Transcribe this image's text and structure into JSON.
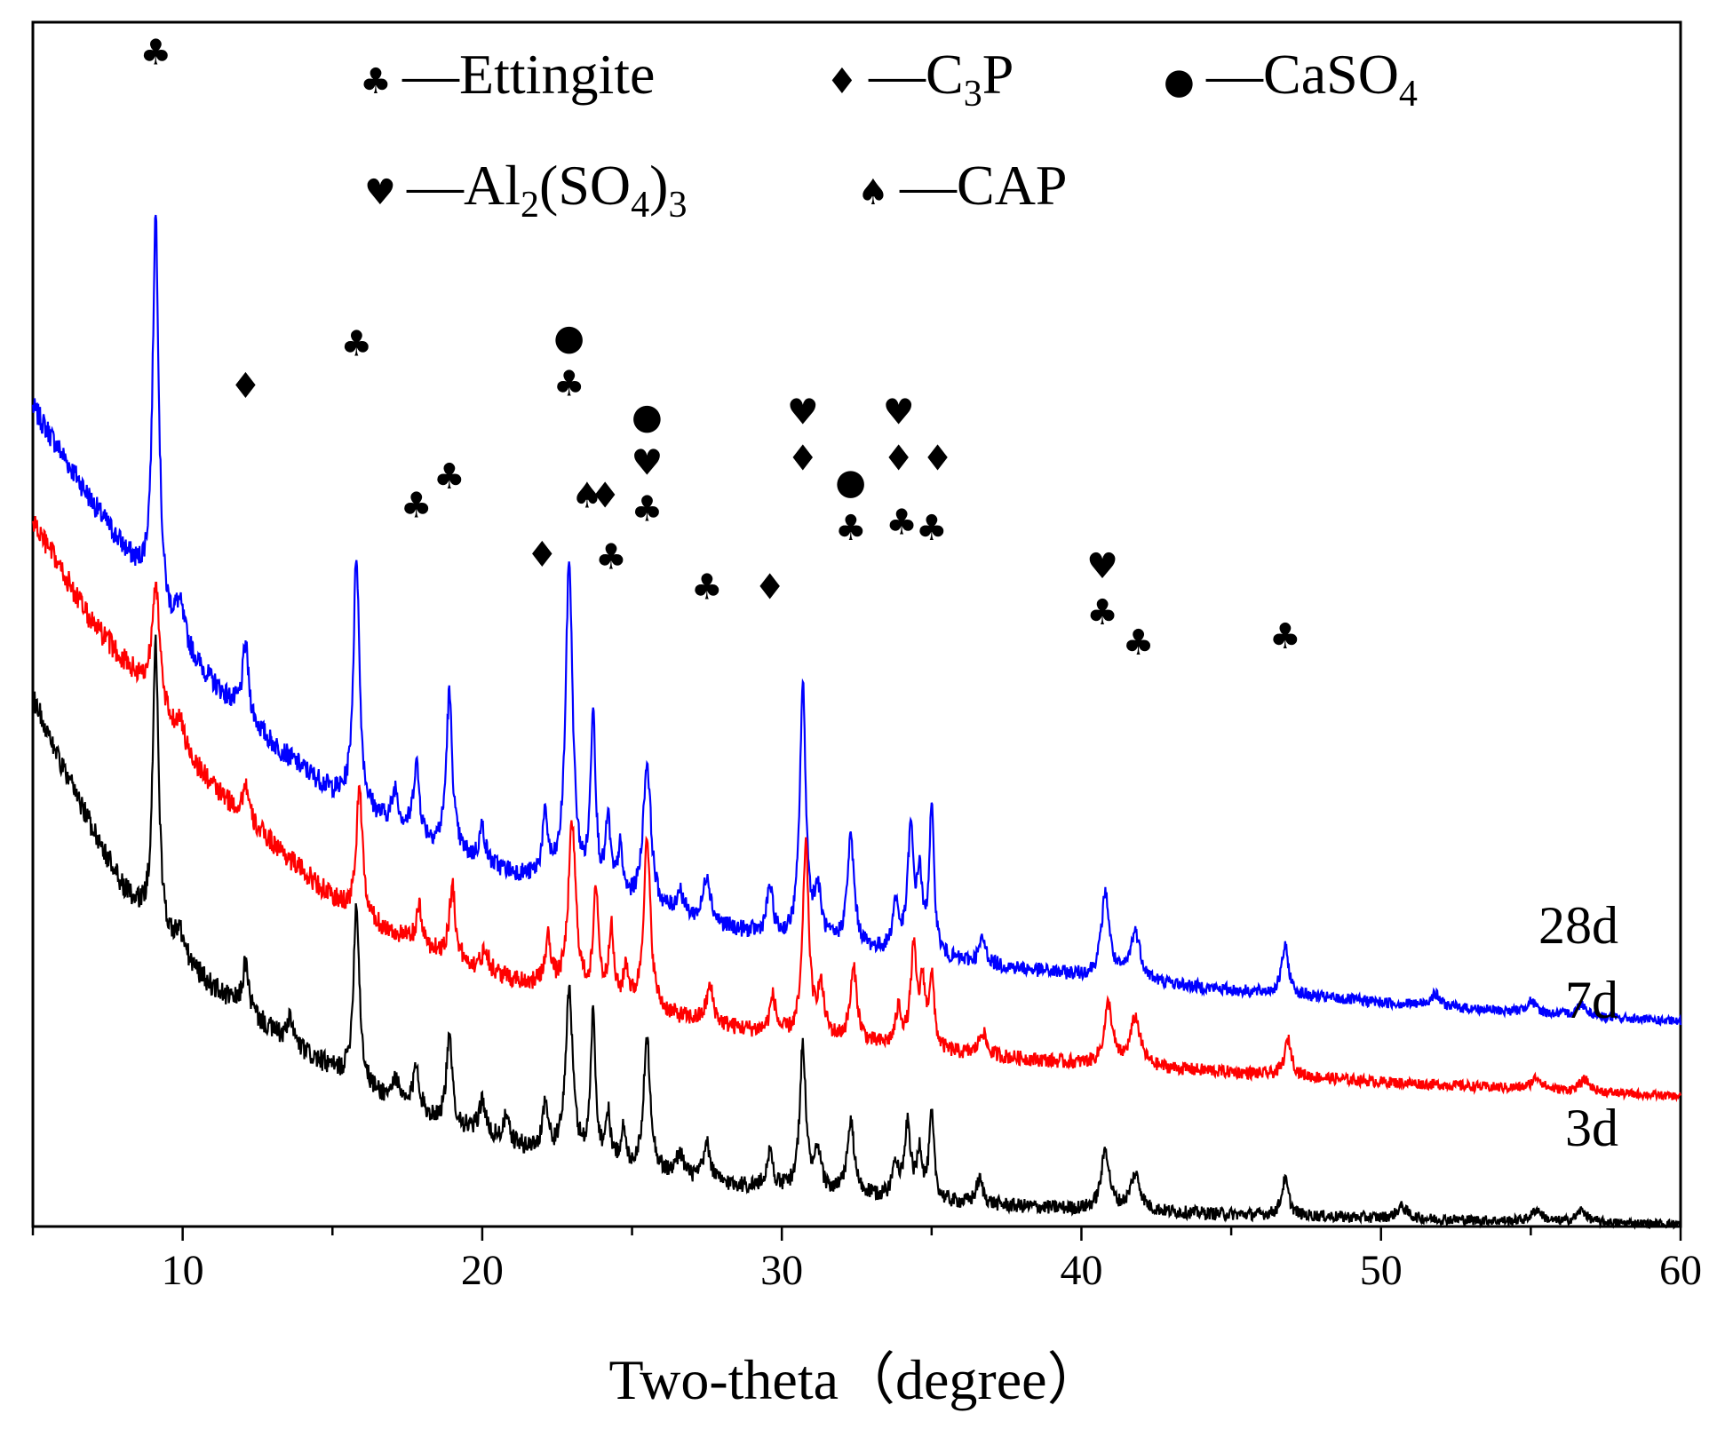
{
  "chart_data": {
    "type": "line",
    "title": "",
    "xlabel": "Two-theta（degree）",
    "ylabel": "",
    "xlim": [
      5,
      60
    ],
    "ylim": [
      0,
      1
    ],
    "x_ticks": [
      10,
      20,
      30,
      40,
      50,
      60
    ],
    "y_ticks": [],
    "colors": {
      "28d": "#0000ff",
      "7d": "#ff0000",
      "3d": "#000000"
    },
    "legend": [
      {
        "name": "Ettingite",
        "symbol": "♣",
        "symbol_name": "club-icon",
        "text": "—Ettingite",
        "sub": [],
        "row": 0
      },
      {
        "name": "C3P",
        "symbol": "♦",
        "symbol_name": "diamond-icon",
        "text": "—C",
        "sub": [
          "3",
          "P"
        ],
        "row": 0
      },
      {
        "name": "CaSO4",
        "symbol": "●",
        "symbol_name": "circle-icon",
        "text": "—CaSO",
        "sub": [
          "4"
        ],
        "row": 0
      },
      {
        "name": "Al2(SO4)3",
        "symbol": "♥",
        "symbol_name": "heart-icon",
        "text": "—Al",
        "sub": [
          "2",
          "(SO",
          "4",
          ")",
          "3"
        ],
        "row": 1
      },
      {
        "name": "CAP",
        "symbol": "♠",
        "symbol_name": "spade-icon",
        "text": "—CAP",
        "sub": [],
        "row": 1
      }
    ],
    "series": [
      {
        "name": "28d",
        "label": "28d",
        "color": "#0000ff",
        "baseline": [
          [
            5,
            0.68
          ],
          [
            7,
            0.6
          ],
          [
            9,
            0.525
          ],
          [
            9.5,
            0.495
          ],
          [
            10,
            0.48
          ],
          [
            11,
            0.45
          ],
          [
            12,
            0.425
          ],
          [
            13,
            0.4
          ],
          [
            14,
            0.38
          ],
          [
            15,
            0.36
          ],
          [
            16,
            0.345
          ],
          [
            18,
            0.32
          ],
          [
            20,
            0.3
          ],
          [
            22,
            0.285
          ],
          [
            25,
            0.265
          ],
          [
            28,
            0.248
          ],
          [
            30,
            0.238
          ],
          [
            35,
            0.222
          ],
          [
            40,
            0.208
          ],
          [
            45,
            0.196
          ],
          [
            50,
            0.186
          ],
          [
            55,
            0.177
          ],
          [
            60,
            0.17
          ]
        ],
        "peaks": [
          [
            9.1,
            0.32,
            0.12
          ],
          [
            9.9,
            0.03,
            0.2
          ],
          [
            12.1,
            0.06,
            0.12
          ],
          [
            15.8,
            0.21,
            0.12
          ],
          [
            17.1,
            0.03,
            0.12
          ],
          [
            17.8,
            0.06,
            0.12
          ],
          [
            18.9,
            0.13,
            0.12
          ],
          [
            20.0,
            0.03,
            0.12
          ],
          [
            22.1,
            0.05,
            0.12
          ],
          [
            22.9,
            0.27,
            0.14
          ],
          [
            23.7,
            0.15,
            0.1
          ],
          [
            24.2,
            0.06,
            0.1
          ],
          [
            24.6,
            0.04,
            0.1
          ],
          [
            25.5,
            0.12,
            0.16
          ],
          [
            26.6,
            0.02,
            0.14
          ],
          [
            27.5,
            0.04,
            0.14
          ],
          [
            29.6,
            0.04,
            0.12
          ],
          [
            30.7,
            0.21,
            0.12
          ],
          [
            31.2,
            0.04,
            0.14
          ],
          [
            32.3,
            0.09,
            0.14
          ],
          [
            33.8,
            0.04,
            0.12
          ],
          [
            34.3,
            0.1,
            0.12
          ],
          [
            34.6,
            0.06,
            0.1
          ],
          [
            35.0,
            0.12,
            0.1
          ],
          [
            36.7,
            0.02,
            0.14
          ],
          [
            40.8,
            0.07,
            0.16
          ],
          [
            41.8,
            0.04,
            0.2
          ],
          [
            46.8,
            0.04,
            0.14
          ],
          [
            51.8,
            0.01,
            0.2
          ],
          [
            55.0,
            0.01,
            0.2
          ],
          [
            56.7,
            0.01,
            0.2
          ]
        ]
      },
      {
        "name": "7d",
        "label": "7d",
        "color": "#ff0000",
        "baseline": [
          [
            5,
            0.585
          ],
          [
            7,
            0.5
          ],
          [
            9,
            0.44
          ],
          [
            9.5,
            0.415
          ],
          [
            10,
            0.395
          ],
          [
            11,
            0.365
          ],
          [
            12,
            0.34
          ],
          [
            13,
            0.318
          ],
          [
            14,
            0.295
          ],
          [
            15,
            0.272
          ],
          [
            16,
            0.255
          ],
          [
            18,
            0.232
          ],
          [
            20,
            0.212
          ],
          [
            22,
            0.198
          ],
          [
            25,
            0.18
          ],
          [
            28,
            0.166
          ],
          [
            30,
            0.158
          ],
          [
            35,
            0.145
          ],
          [
            40,
            0.135
          ],
          [
            45,
            0.128
          ],
          [
            50,
            0.12
          ],
          [
            55,
            0.114
          ],
          [
            60,
            0.108
          ]
        ],
        "peaks": [
          [
            9.1,
            0.1,
            0.15
          ],
          [
            9.9,
            0.02,
            0.2
          ],
          [
            12.1,
            0.03,
            0.12
          ],
          [
            15.9,
            0.11,
            0.12
          ],
          [
            17.9,
            0.03,
            0.12
          ],
          [
            19.0,
            0.06,
            0.12
          ],
          [
            20.1,
            0.02,
            0.12
          ],
          [
            22.2,
            0.04,
            0.12
          ],
          [
            23.0,
            0.14,
            0.15
          ],
          [
            23.8,
            0.09,
            0.1
          ],
          [
            24.3,
            0.06,
            0.1
          ],
          [
            24.8,
            0.03,
            0.1
          ],
          [
            25.5,
            0.14,
            0.14
          ],
          [
            27.6,
            0.03,
            0.14
          ],
          [
            29.7,
            0.03,
            0.12
          ],
          [
            30.8,
            0.16,
            0.12
          ],
          [
            31.3,
            0.04,
            0.14
          ],
          [
            32.4,
            0.06,
            0.14
          ],
          [
            33.9,
            0.03,
            0.12
          ],
          [
            34.4,
            0.08,
            0.12
          ],
          [
            34.7,
            0.05,
            0.1
          ],
          [
            35.0,
            0.06,
            0.1
          ],
          [
            36.7,
            0.02,
            0.14
          ],
          [
            40.9,
            0.05,
            0.16
          ],
          [
            41.8,
            0.04,
            0.2
          ],
          [
            46.9,
            0.03,
            0.14
          ],
          [
            55.2,
            0.01,
            0.2
          ],
          [
            56.8,
            0.01,
            0.2
          ]
        ]
      },
      {
        "name": "3d",
        "label": "3d",
        "color": "#000000",
        "baseline": [
          [
            5,
            0.44
          ],
          [
            6,
            0.38
          ],
          [
            7,
            0.33
          ],
          [
            8,
            0.28
          ],
          [
            9,
            0.245
          ],
          [
            10,
            0.22
          ],
          [
            11,
            0.198
          ],
          [
            12,
            0.18
          ],
          [
            13,
            0.162
          ],
          [
            14,
            0.145
          ],
          [
            15,
            0.13
          ],
          [
            16,
            0.115
          ],
          [
            18,
            0.092
          ],
          [
            20,
            0.075
          ],
          [
            22,
            0.06
          ],
          [
            25,
            0.045
          ],
          [
            28,
            0.035
          ],
          [
            30,
            0.03
          ],
          [
            35,
            0.02
          ],
          [
            40,
            0.014
          ],
          [
            45,
            0.01
          ],
          [
            50,
            0.007
          ],
          [
            55,
            0.004
          ],
          [
            60,
            0.002
          ]
        ],
        "peaks": [
          [
            9.1,
            0.24,
            0.12
          ],
          [
            9.9,
            0.02,
            0.2
          ],
          [
            12.1,
            0.04,
            0.12
          ],
          [
            13.6,
            0.02,
            0.12
          ],
          [
            15.8,
            0.15,
            0.12
          ],
          [
            17.1,
            0.02,
            0.12
          ],
          [
            17.8,
            0.04,
            0.12
          ],
          [
            18.9,
            0.07,
            0.12
          ],
          [
            20.0,
            0.03,
            0.12
          ],
          [
            20.8,
            0.02,
            0.12
          ],
          [
            22.1,
            0.04,
            0.12
          ],
          [
            22.9,
            0.14,
            0.14
          ],
          [
            23.7,
            0.12,
            0.1
          ],
          [
            24.2,
            0.04,
            0.1
          ],
          [
            24.7,
            0.03,
            0.1
          ],
          [
            25.5,
            0.11,
            0.14
          ],
          [
            26.6,
            0.02,
            0.14
          ],
          [
            27.5,
            0.03,
            0.14
          ],
          [
            29.6,
            0.03,
            0.12
          ],
          [
            30.7,
            0.12,
            0.12
          ],
          [
            31.2,
            0.03,
            0.14
          ],
          [
            32.3,
            0.06,
            0.14
          ],
          [
            33.8,
            0.03,
            0.12
          ],
          [
            34.2,
            0.06,
            0.12
          ],
          [
            34.6,
            0.04,
            0.1
          ],
          [
            35.0,
            0.07,
            0.1
          ],
          [
            36.6,
            0.02,
            0.14
          ],
          [
            40.8,
            0.05,
            0.16
          ],
          [
            41.8,
            0.03,
            0.2
          ],
          [
            46.8,
            0.03,
            0.14
          ],
          [
            50.7,
            0.01,
            0.2
          ],
          [
            55.2,
            0.01,
            0.2
          ],
          [
            56.7,
            0.01,
            0.2
          ]
        ]
      }
    ],
    "annotations": [
      {
        "x": 9.1,
        "y": 0.965,
        "symbols": [
          "♣"
        ]
      },
      {
        "x": 12.1,
        "y": 0.688,
        "symbols": [
          "♦"
        ]
      },
      {
        "x": 15.8,
        "y": 0.723,
        "symbols": [
          "♣"
        ]
      },
      {
        "x": 17.8,
        "y": 0.589,
        "symbols": [
          "♣"
        ]
      },
      {
        "x": 18.9,
        "y": 0.613,
        "symbols": [
          "♣"
        ]
      },
      {
        "x": 22.0,
        "y": 0.548,
        "symbols": [
          "♦"
        ]
      },
      {
        "x": 22.9,
        "y": 0.69,
        "symbols": [
          "♣",
          "●"
        ]
      },
      {
        "x": 23.5,
        "y": 0.597,
        "symbols": [
          "♠"
        ]
      },
      {
        "x": 24.1,
        "y": 0.597,
        "symbols": [
          "♦"
        ]
      },
      {
        "x": 24.3,
        "y": 0.546,
        "symbols": [
          "♣"
        ]
      },
      {
        "x": 25.5,
        "y": 0.586,
        "symbols": [
          "♣",
          "♥",
          "●"
        ]
      },
      {
        "x": 27.5,
        "y": 0.521,
        "symbols": [
          "♣"
        ]
      },
      {
        "x": 29.6,
        "y": 0.521,
        "symbols": [
          "♦"
        ]
      },
      {
        "x": 30.7,
        "y": 0.628,
        "symbols": [
          "♦",
          "♥"
        ]
      },
      {
        "x": 32.3,
        "y": 0.57,
        "symbols": [
          "♣",
          "●"
        ]
      },
      {
        "x": 33.9,
        "y": 0.628,
        "symbols": [
          "♦",
          "♥"
        ]
      },
      {
        "x": 34.0,
        "y": 0.575,
        "symbols": [
          "♣"
        ]
      },
      {
        "x": 35.0,
        "y": 0.57,
        "symbols": [
          "♣"
        ]
      },
      {
        "x": 35.2,
        "y": 0.628,
        "symbols": [
          "♦"
        ]
      },
      {
        "x": 40.7,
        "y": 0.5,
        "symbols": [
          "♣",
          "♥"
        ]
      },
      {
        "x": 41.9,
        "y": 0.475,
        "symbols": [
          "♣"
        ]
      },
      {
        "x": 46.8,
        "y": 0.48,
        "symbols": [
          "♣"
        ]
      }
    ]
  }
}
